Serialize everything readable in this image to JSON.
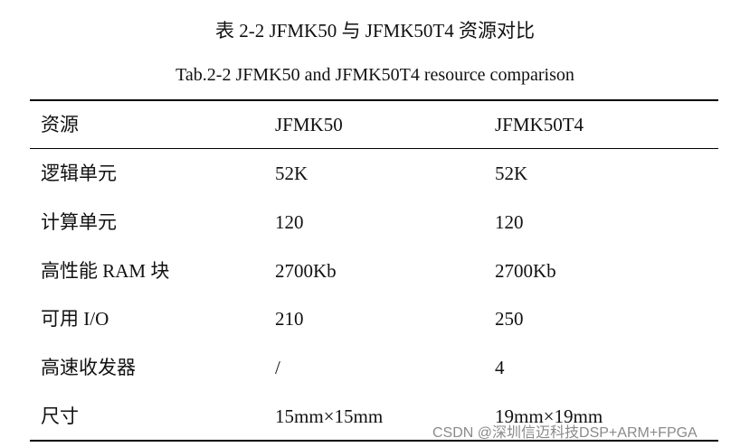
{
  "title": "表 2-2 JFMK50 与 JFMK50T4 资源对比",
  "subtitle": "Tab.2-2 JFMK50 and JFMK50T4 resource comparison",
  "table": {
    "header": [
      "资源",
      "JFMK50",
      "JFMK50T4"
    ],
    "rows": [
      [
        "逻辑单元",
        "52K",
        "52K"
      ],
      [
        "计算单元",
        "120",
        "120"
      ],
      [
        "高性能 RAM 块",
        "2700Kb",
        "2700Kb"
      ],
      [
        "可用 I/O",
        "210",
        "250"
      ],
      [
        "高速收发器",
        "/",
        "4"
      ],
      [
        "尺寸",
        "15mm×15mm",
        "19mm×19mm"
      ]
    ]
  },
  "watermark": "CSDN @深圳信迈科技DSP+ARM+FPGA"
}
